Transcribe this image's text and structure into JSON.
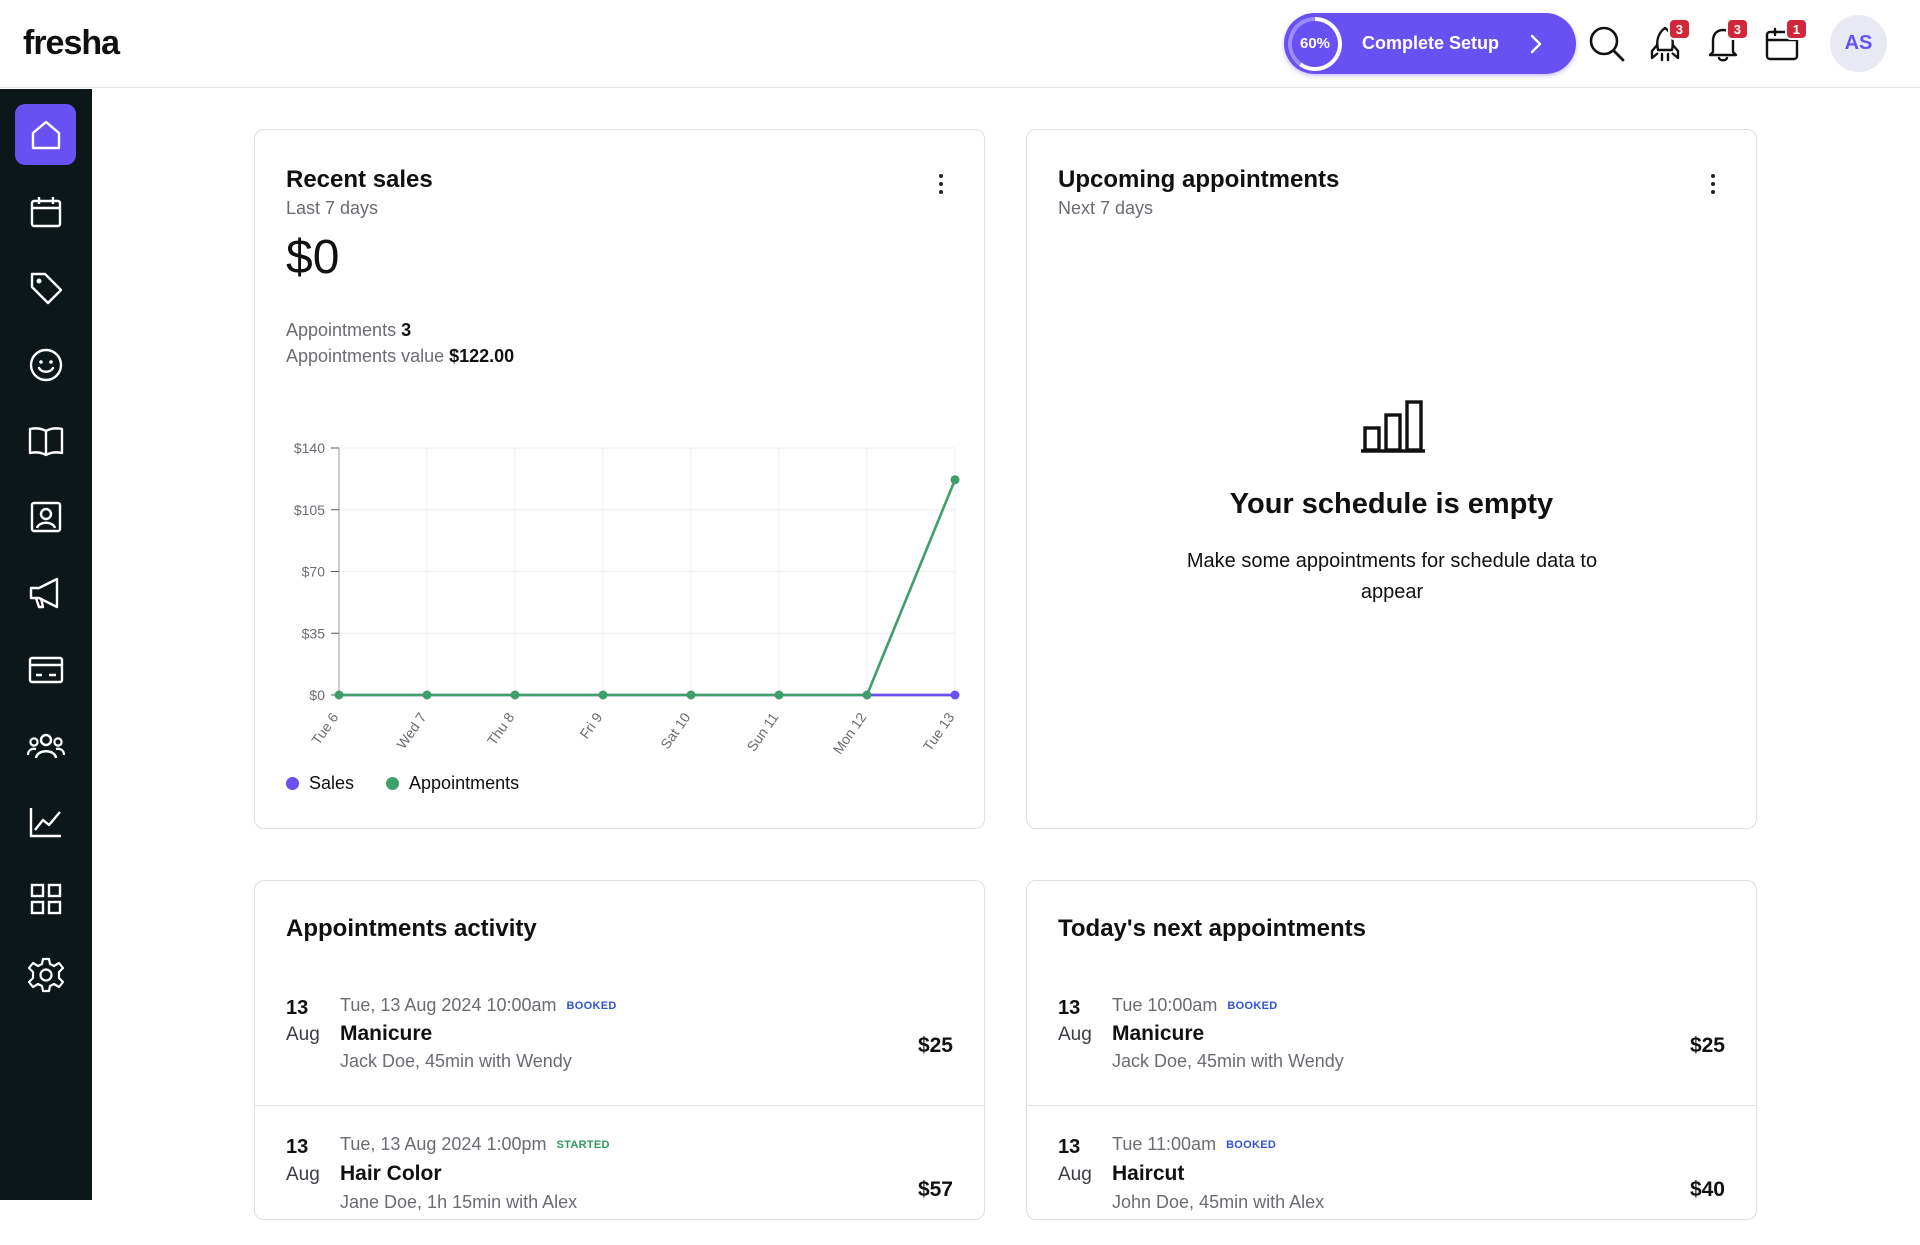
{
  "app": {
    "logo": "fresha"
  },
  "topbar": {
    "setup_progress": "60%",
    "setup_progress_fraction": 0.6,
    "setup_label": "Complete Setup",
    "rocket_badge": "3",
    "bell_badge": "3",
    "calendar_badge": "1",
    "avatar_initials": "AS"
  },
  "sidebar": {
    "items": [
      {
        "name": "home",
        "icon": "home-icon",
        "active": true
      },
      {
        "name": "calendar",
        "icon": "calendar-icon"
      },
      {
        "name": "sales",
        "icon": "tag-icon"
      },
      {
        "name": "clients",
        "icon": "smiley-icon"
      },
      {
        "name": "catalog",
        "icon": "book-icon"
      },
      {
        "name": "online-booking",
        "icon": "contact-card-icon"
      },
      {
        "name": "marketing",
        "icon": "megaphone-icon"
      },
      {
        "name": "payments",
        "icon": "card-icon"
      },
      {
        "name": "team",
        "icon": "team-icon"
      },
      {
        "name": "reports",
        "icon": "chart-icon"
      },
      {
        "name": "add-ons",
        "icon": "grid-icon"
      },
      {
        "name": "settings",
        "icon": "gear-icon"
      }
    ]
  },
  "recent_sales": {
    "title": "Recent sales",
    "subtitle": "Last 7 days",
    "total": "$0",
    "appointments_label": "Appointments",
    "appointments_count": "3",
    "appointments_value_label": "Appointments value",
    "appointments_value": "$122.00"
  },
  "upcoming": {
    "title": "Upcoming appointments",
    "subtitle": "Next 7 days",
    "empty_title": "Your schedule is empty",
    "empty_text": "Make some appointments for schedule data to appear"
  },
  "chart_data": {
    "type": "line",
    "x": [
      "Tue 6",
      "Wed 7",
      "Thu 8",
      "Fri 9",
      "Sat 10",
      "Sun 11",
      "Mon 12",
      "Tue 13"
    ],
    "y_ticks": [
      "$0",
      "$35",
      "$70",
      "$105",
      "$140"
    ],
    "ylim": [
      0,
      140
    ],
    "grid": true,
    "legend": "bottom-left",
    "series": [
      {
        "name": "Sales",
        "color": "#6950f3",
        "values": [
          0,
          0,
          0,
          0,
          0,
          0,
          0,
          0
        ]
      },
      {
        "name": "Appointments",
        "color": "#3e9f68",
        "values": [
          0,
          0,
          0,
          0,
          0,
          0,
          0,
          122
        ]
      }
    ]
  },
  "activity": {
    "title": "Appointments activity",
    "items": [
      {
        "day": "13",
        "month": "Aug",
        "when": "Tue, 13 Aug 2024 10:00am",
        "status": "BOOKED",
        "status_color": "#3453d6",
        "service": "Manicure",
        "details": "Jack Doe, 45min with Wendy",
        "price": "$25"
      },
      {
        "day": "13",
        "month": "Aug",
        "when": "Tue, 13 Aug 2024 1:00pm",
        "status": "STARTED",
        "status_color": "#2f9a57",
        "service": "Hair Color",
        "details": "Jane Doe, 1h 15min with Alex",
        "price": "$57"
      }
    ]
  },
  "todays": {
    "title": "Today's next appointments",
    "items": [
      {
        "day": "13",
        "month": "Aug",
        "when": "Tue 10:00am",
        "status": "BOOKED",
        "status_color": "#3453d6",
        "service": "Manicure",
        "details": "Jack Doe, 45min with Wendy",
        "price": "$25"
      },
      {
        "day": "13",
        "month": "Aug",
        "when": "Tue 11:00am",
        "status": "BOOKED",
        "status_color": "#3453d6",
        "service": "Haircut",
        "details": "John Doe, 45min with Alex",
        "price": "$40"
      }
    ]
  }
}
